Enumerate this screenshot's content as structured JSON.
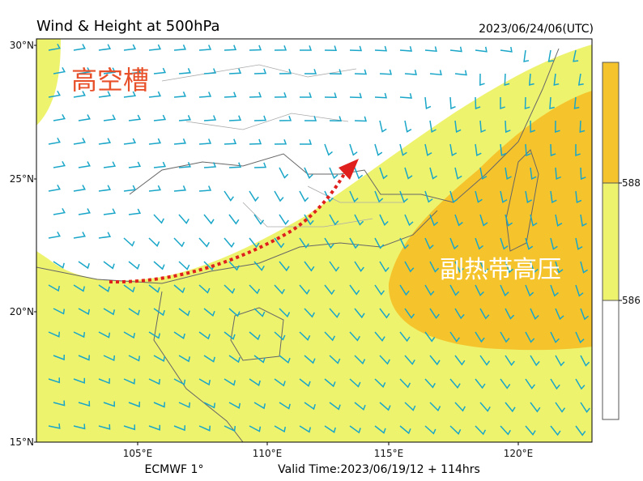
{
  "header": {
    "title": "Wind & Height at 500hPa",
    "datetime": "2023/06/24/06(UTC)"
  },
  "axes": {
    "lat_labels": [
      "30°N",
      "25°N",
      "20°N",
      "15°N"
    ],
    "lon_labels": [
      "105°E",
      "110°E",
      "115°E",
      "120°E"
    ]
  },
  "annotations": {
    "trough": "高空槽",
    "subtropical_high": "副热带高压"
  },
  "colorbar": {
    "ticks": [
      586,
      588
    ]
  },
  "footer": {
    "model": "ECMWF 1°",
    "valid_time": "Valid Time:2023/06/19/12 + 114hrs"
  }
}
